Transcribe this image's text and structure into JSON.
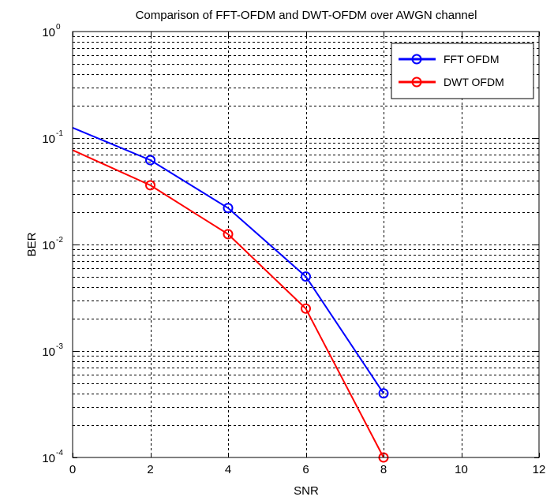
{
  "chart_data": {
    "type": "line",
    "title": "Comparison of FFT-OFDM and DWT-OFDM over AWGN channel",
    "xlabel": "SNR",
    "ylabel": "BER",
    "xlim": [
      0,
      12
    ],
    "ylim": [
      0.0001,
      1
    ],
    "yscale": "log",
    "grid": "on (dashed, major and minor on y)",
    "legend_position": "top-right",
    "xticks": [
      "0",
      "2",
      "4",
      "6",
      "8",
      "10",
      "12"
    ],
    "yticks": [
      {
        "base": "10",
        "exp": "0"
      },
      {
        "base": "10",
        "exp": "-1"
      },
      {
        "base": "10",
        "exp": "-2"
      },
      {
        "base": "10",
        "exp": "-3"
      },
      {
        "base": "10",
        "exp": "-4"
      }
    ],
    "series": [
      {
        "name": "FFT OFDM",
        "color": "#0000ff",
        "marker": "circle",
        "x": [
          0,
          2,
          4,
          6,
          8
        ],
        "y": [
          0.125,
          0.062,
          0.022,
          0.005,
          0.0004
        ]
      },
      {
        "name": "DWT OFDM",
        "color": "#ff0000",
        "marker": "circle",
        "x": [
          0,
          2,
          4,
          6,
          8
        ],
        "y": [
          0.077,
          0.036,
          0.0125,
          0.0025,
          0.0001
        ]
      }
    ]
  }
}
